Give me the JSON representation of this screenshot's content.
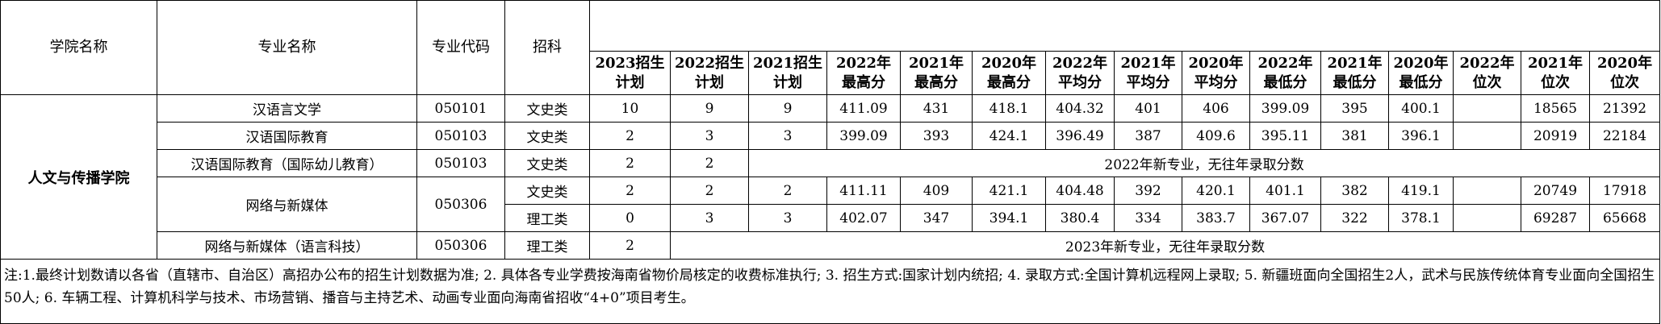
{
  "table": {
    "headers": [
      "学院名称",
      "专业名称",
      "专业代码",
      "招科"
    ],
    "sub_headers": [
      "2023招生\n计划",
      "2022招生\n计划",
      "2021招生\n计划",
      "2022年\n最高分",
      "2021年\n最高分",
      "2020年\n最高分",
      "2022年\n平均分",
      "2021年\n平均分",
      "2020年\n平均分",
      "2022年\n最低分",
      "2021年\n最低分",
      "2020年\n最低分",
      "2022年\n位次",
      "2021年\n位次",
      "2020年\n位次"
    ],
    "college": "人文与传播学院",
    "rows": [
      {
        "major": "汉语言文学",
        "code": "050101",
        "subject": "文史类",
        "values": [
          "10",
          "9",
          "9",
          "411.09",
          "431",
          "418.1",
          "404.32",
          "401",
          "406",
          "399.09",
          "395",
          "400.1",
          null,
          "18565",
          "21392"
        ]
      },
      {
        "major": "汉语国际教育",
        "code": "050103",
        "subject": "文史类",
        "values": [
          "2",
          "3",
          "3",
          "399.09",
          "393",
          "424.1",
          "396.49",
          "387",
          "409.6",
          "395.11",
          "381",
          "396.1",
          null,
          "20919",
          "22184"
        ]
      },
      {
        "major": "汉语国际教育（国际幼儿教育）",
        "code": "050103",
        "subject": "文史类",
        "values": [
          "2",
          "2"
        ],
        "note": "2022年新专业，无往年录取分数"
      },
      {
        "major": "网络与新媒体",
        "code": "050306",
        "subject": "文史类",
        "values": [
          "2",
          "2",
          "2",
          "411.11",
          "409",
          "421.1",
          "404.48",
          "392",
          "420.1",
          "401.1",
          "382",
          "419.1",
          null,
          "20749",
          "17918"
        ]
      },
      {
        "subject": "理工类",
        "values": [
          "0",
          "3",
          "3",
          "402.07",
          "347",
          "394.1",
          "380.4",
          "334",
          "383.7",
          "367.07",
          "322",
          "378.1",
          null,
          "69287",
          "65668"
        ]
      },
      {
        "major": "网络与新媒体（语言科技）",
        "code": "050306",
        "subject": "理工类",
        "values": [
          "2"
        ],
        "note": "2023年新专业，无往年录取分数"
      }
    ],
    "footer": "注:1.最终计划数请以各省（直辖市、自治区）高招办公布的招生计划数据为准;   2. 具体各专业学费按海南省物价局核定的收费标准执行;   3. 招生方式:国家计划内统招;   4. 录取方式:全国计算机远程网上录取;   5. 新疆班面向全国招生2人，武术与民族传统体育专业面向全国招生50人;   6. 车辆工程、计算机科学与技术、市场营销、播音与主持艺术、动画专业面向海南省招收“4+0”项目考生。"
  }
}
